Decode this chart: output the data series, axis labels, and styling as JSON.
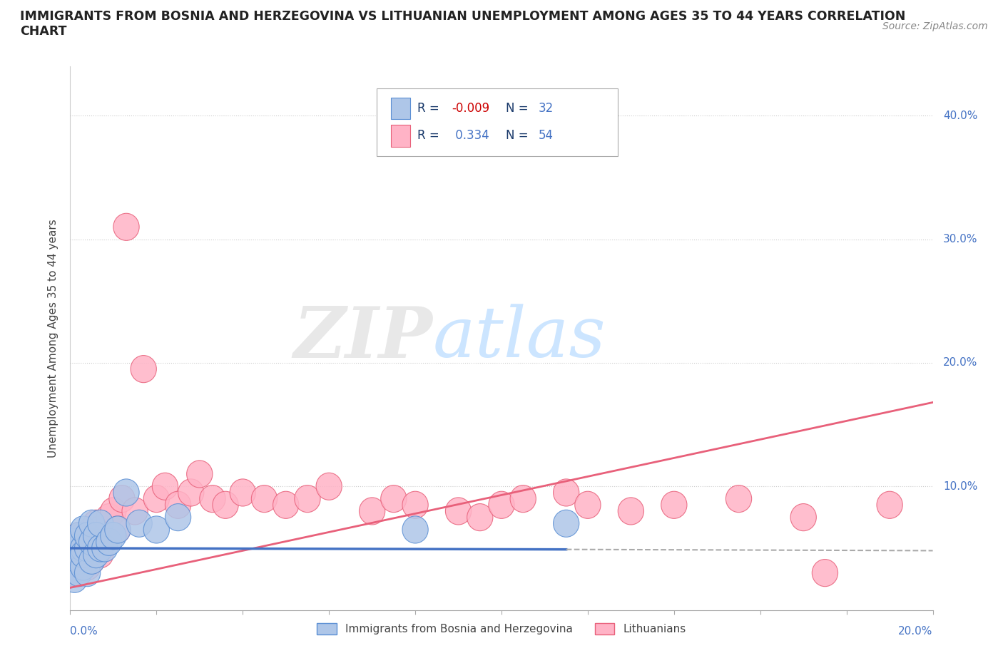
{
  "title_line1": "IMMIGRANTS FROM BOSNIA AND HERZEGOVINA VS LITHUANIAN UNEMPLOYMENT AMONG AGES 35 TO 44 YEARS CORRELATION",
  "title_line2": "CHART",
  "source": "Source: ZipAtlas.com",
  "ylabel": "Unemployment Among Ages 35 to 44 years",
  "xlim": [
    0.0,
    0.2
  ],
  "ylim": [
    0.0,
    0.44
  ],
  "bosnia_color": "#AEC6E8",
  "bosnia_edge_color": "#5B8FD4",
  "lithuanian_color": "#FFB3C6",
  "lithuanian_edge_color": "#E8607A",
  "bosnia_line_color": "#4472C4",
  "lithuanian_line_color": "#E8607A",
  "dashed_color": "#AAAAAA",
  "r_bosnia": -0.009,
  "r_lithuanian": 0.334,
  "n_bosnia": 32,
  "n_lithuanian": 54,
  "bosnia_x": [
    0.001,
    0.001,
    0.001,
    0.001,
    0.002,
    0.002,
    0.002,
    0.002,
    0.003,
    0.003,
    0.003,
    0.003,
    0.004,
    0.004,
    0.004,
    0.005,
    0.005,
    0.005,
    0.006,
    0.006,
    0.007,
    0.007,
    0.008,
    0.009,
    0.01,
    0.011,
    0.013,
    0.016,
    0.02,
    0.025,
    0.08,
    0.115
  ],
  "bosnia_y": [
    0.035,
    0.045,
    0.025,
    0.055,
    0.03,
    0.05,
    0.04,
    0.06,
    0.035,
    0.05,
    0.045,
    0.065,
    0.03,
    0.05,
    0.06,
    0.04,
    0.055,
    0.07,
    0.045,
    0.06,
    0.05,
    0.07,
    0.05,
    0.055,
    0.06,
    0.065,
    0.095,
    0.07,
    0.065,
    0.075,
    0.065,
    0.07
  ],
  "lithuanian_x": [
    0.001,
    0.001,
    0.001,
    0.002,
    0.002,
    0.002,
    0.003,
    0.003,
    0.003,
    0.004,
    0.004,
    0.004,
    0.005,
    0.005,
    0.005,
    0.006,
    0.006,
    0.007,
    0.007,
    0.008,
    0.009,
    0.01,
    0.011,
    0.012,
    0.013,
    0.015,
    0.017,
    0.02,
    0.022,
    0.025,
    0.028,
    0.03,
    0.033,
    0.036,
    0.04,
    0.045,
    0.05,
    0.055,
    0.06,
    0.07,
    0.075,
    0.08,
    0.09,
    0.095,
    0.1,
    0.105,
    0.115,
    0.12,
    0.13,
    0.14,
    0.155,
    0.17,
    0.175,
    0.19
  ],
  "lithuanian_y": [
    0.04,
    0.055,
    0.03,
    0.06,
    0.04,
    0.055,
    0.04,
    0.06,
    0.05,
    0.045,
    0.06,
    0.035,
    0.05,
    0.065,
    0.04,
    0.055,
    0.07,
    0.045,
    0.065,
    0.06,
    0.075,
    0.08,
    0.065,
    0.09,
    0.31,
    0.08,
    0.195,
    0.09,
    0.1,
    0.085,
    0.095,
    0.11,
    0.09,
    0.085,
    0.095,
    0.09,
    0.085,
    0.09,
    0.1,
    0.08,
    0.09,
    0.085,
    0.08,
    0.075,
    0.085,
    0.09,
    0.095,
    0.085,
    0.08,
    0.085,
    0.09,
    0.075,
    0.03,
    0.085
  ],
  "bosnia_line_x0": 0.0,
  "bosnia_line_x_solid_end": 0.115,
  "bosnia_line_x1": 0.2,
  "bosnia_line_y0": 0.05,
  "bosnia_line_y_solid_end": 0.049,
  "bosnia_line_y1": 0.048,
  "lithuanian_line_x0": 0.0,
  "lithuanian_line_x1": 0.2,
  "lithuanian_line_y0": 0.018,
  "lithuanian_line_y1": 0.168
}
